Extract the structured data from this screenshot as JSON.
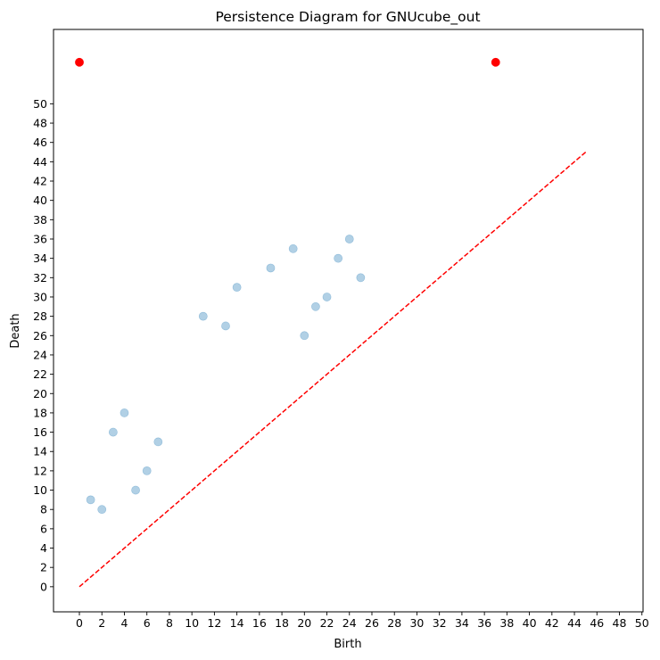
{
  "chart_data": {
    "type": "scatter",
    "title": "Persistence Diagram for GNUcube_out",
    "xlabel": "Birth",
    "ylabel": "Death",
    "xlim": [
      -2.3,
      50.1
    ],
    "ylim": [
      -2.6,
      57.7
    ],
    "x_ticks": [
      0,
      2,
      4,
      6,
      8,
      10,
      12,
      14,
      16,
      18,
      20,
      22,
      24,
      26,
      28,
      30,
      32,
      34,
      36,
      38,
      40,
      42,
      44,
      46,
      48,
      50
    ],
    "y_ticks": [
      0,
      2,
      4,
      6,
      8,
      10,
      12,
      14,
      16,
      18,
      20,
      22,
      24,
      26,
      28,
      30,
      32,
      34,
      36,
      38,
      40,
      42,
      44,
      46,
      48,
      50
    ],
    "grid": false,
    "legend": "none",
    "diagonal": {
      "from": [
        0,
        0
      ],
      "to": [
        45,
        45
      ],
      "color": "#ff0000",
      "style": "dashed"
    },
    "series": [
      {
        "color": "#1f77b4",
        "opacity": 0.35,
        "points": [
          {
            "x": 1,
            "y": 9
          },
          {
            "x": 2,
            "y": 8
          },
          {
            "x": 3,
            "y": 16
          },
          {
            "x": 4,
            "y": 18
          },
          {
            "x": 5,
            "y": 10
          },
          {
            "x": 6,
            "y": 12
          },
          {
            "x": 7,
            "y": 15
          },
          {
            "x": 11,
            "y": 28
          },
          {
            "x": 13,
            "y": 27
          },
          {
            "x": 14,
            "y": 31
          },
          {
            "x": 17,
            "y": 33
          },
          {
            "x": 19,
            "y": 35
          },
          {
            "x": 20,
            "y": 26
          },
          {
            "x": 21,
            "y": 29
          },
          {
            "x": 22,
            "y": 30
          },
          {
            "x": 23,
            "y": 34
          },
          {
            "x": 24,
            "y": 36
          },
          {
            "x": 25,
            "y": 32
          }
        ]
      },
      {
        "color": "#ff0000",
        "opacity": 1,
        "points": [
          {
            "x": 0,
            "y": 54.3
          },
          {
            "x": 37,
            "y": 54.3
          }
        ]
      }
    ]
  }
}
